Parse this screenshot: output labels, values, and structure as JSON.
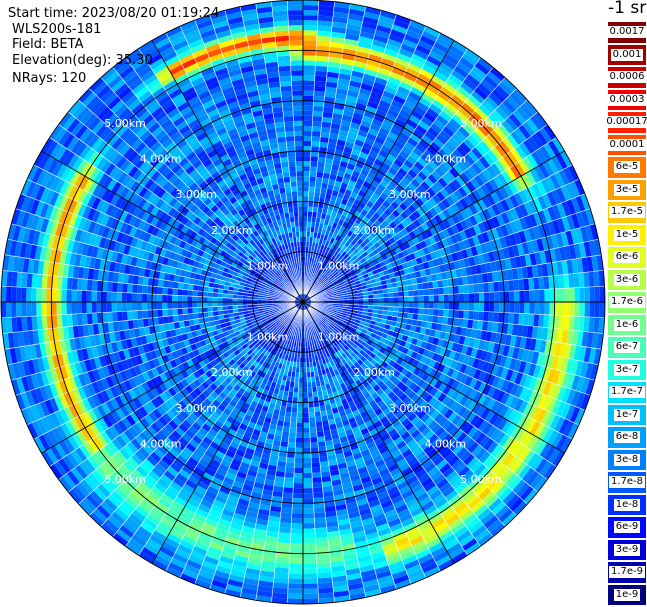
{
  "header": {
    "start_time": "Start time: 2023/08/20 01:19:24",
    "instrument": "WLS200s-181",
    "field": "Field: BETA",
    "elevation": "Elevation(deg): 35.30",
    "nrays": "NRays: 120"
  },
  "colorbar": {
    "title": "-1 sr",
    "labels": [
      "0.0017",
      "0.001",
      "0.0006",
      "0.0003",
      "0.00017",
      "0.0001",
      "6e-5",
      "3e-5",
      "1.7e-5",
      "1e-5",
      "6e-6",
      "3e-6",
      "1.7e-6",
      "1e-6",
      "6e-7",
      "3e-7",
      "1.7e-7",
      "1e-7",
      "6e-8",
      "3e-8",
      "1.7e-8",
      "1e-8",
      "6e-9",
      "3e-9",
      "1.7e-9",
      "1e-9"
    ],
    "colors": [
      "#800000",
      "#a00000",
      "#c80000",
      "#f00000",
      "#ff2000",
      "#ff5000",
      "#ff7800",
      "#ffa000",
      "#ffc800",
      "#fff000",
      "#e0ff20",
      "#b8ff48",
      "#90ff70",
      "#70ff90",
      "#48ffb8",
      "#20ffe0",
      "#00e0ff",
      "#00c0ff",
      "#00a0ff",
      "#0080ff",
      "#0058ff",
      "#0030ff",
      "#0008ff",
      "#0000d8",
      "#0000a8",
      "#000080"
    ]
  },
  "chart_data": {
    "type": "heatmap",
    "projection": "polar PPI",
    "field": "BETA",
    "elevation_deg": 35.3,
    "n_rays": 120,
    "max_range_km": 6.0,
    "range_rings_km": [
      1,
      2,
      3,
      4,
      5,
      6
    ],
    "ring_labels": [
      "1.00km",
      "2.00km",
      "3.00km",
      "4.00km",
      "5.00km"
    ],
    "spoke_step_deg": 30,
    "color_scale": "log",
    "value_range": [
      1e-09,
      0.0017
    ],
    "features": [
      {
        "range_km": [
          4.7,
          5.3
        ],
        "azimuth_deg": [
          0,
          60
        ],
        "log10_beta": -4.3
      },
      {
        "range_km": [
          4.7,
          5.3
        ],
        "azimuth_deg": [
          235,
          300
        ],
        "log10_beta": -4.6
      },
      {
        "range_km": [
          5.0,
          5.5
        ],
        "azimuth_deg": [
          330,
          360
        ],
        "log10_beta": -4.0
      },
      {
        "range_km": [
          4.8,
          5.6
        ],
        "azimuth_deg": [
          90,
          160
        ],
        "log10_beta": -5.0
      },
      {
        "range_km": [
          4.4,
          5.6
        ],
        "azimuth_deg": [
          170,
          230
        ],
        "log10_beta": -6.0
      }
    ]
  }
}
